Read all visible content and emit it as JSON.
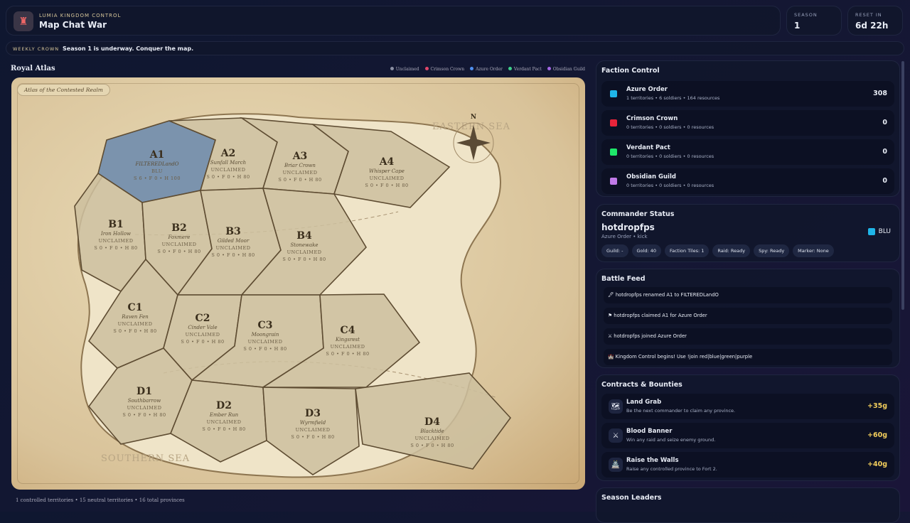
{
  "header": {
    "kicker": "LUMIA KINGDOM CONTROL",
    "title": "Map Chat War",
    "logo_icon": "castle-icon"
  },
  "stats": [
    {
      "label": "SEASON",
      "value": "1"
    },
    {
      "label": "RESET IN",
      "value": "6d 22h"
    }
  ],
  "ticker": {
    "label": "WEEKLY CROWN",
    "message": "Season 1 is underway. Conquer the map."
  },
  "atlas": {
    "title": "Royal Atlas",
    "badge": "Atlas of the Contested Realm",
    "east_sea": "EASTERN SEA",
    "south_sea": "SOUTHERN SEA",
    "compass": "N",
    "legend": [
      {
        "label": "Unclaimed",
        "color": "#8a8fa3"
      },
      {
        "label": "Crimson Crown",
        "color": "#e0466a"
      },
      {
        "label": "Azure Order",
        "color": "#4f8ff0"
      },
      {
        "label": "Verdant Pact",
        "color": "#3fd08a"
      },
      {
        "label": "Obsidian Guild",
        "color": "#a467e6"
      }
    ],
    "territories": [
      {
        "id": "A1",
        "name": "FILTEREDLandO",
        "owner": "BLU",
        "stats": "S 6 • F 0 • H 100",
        "color": "#7b93ad"
      },
      {
        "id": "A2",
        "name": "Sunfall March",
        "owner": "UNCLAIMED",
        "stats": "S 0 • F 0 • H 80"
      },
      {
        "id": "A3",
        "name": "Briar Crown",
        "owner": "UNCLAIMED",
        "stats": "S 0 • F 0 • H 80"
      },
      {
        "id": "A4",
        "name": "Whisper Cape",
        "owner": "UNCLAIMED",
        "stats": "S 0 • F 0 • H 80"
      },
      {
        "id": "B1",
        "name": "Iron Hollow",
        "owner": "UNCLAIMED",
        "stats": "S 0 • F 0 • H 80"
      },
      {
        "id": "B2",
        "name": "Foxmere",
        "owner": "UNCLAIMED",
        "stats": "S 0 • F 0 • H 80"
      },
      {
        "id": "B3",
        "name": "Gilded Moor",
        "owner": "UNCLAIMED",
        "stats": "S 0 • F 0 • H 80"
      },
      {
        "id": "B4",
        "name": "Stonewake",
        "owner": "UNCLAIMED",
        "stats": "S 0 • F 0 • H 80"
      },
      {
        "id": "C1",
        "name": "Raven Fen",
        "owner": "UNCLAIMED",
        "stats": "S 0 • F 0 • H 80"
      },
      {
        "id": "C2",
        "name": "Cinder Vale",
        "owner": "UNCLAIMED",
        "stats": "S 0 • F 0 • H 80"
      },
      {
        "id": "C3",
        "name": "Moongrain",
        "owner": "UNCLAIMED",
        "stats": "S 0 • F 0 • H 80"
      },
      {
        "id": "C4",
        "name": "Kingsrest",
        "owner": "UNCLAIMED",
        "stats": "S 0 • F 0 • H 80"
      },
      {
        "id": "D1",
        "name": "Southbarrow",
        "owner": "UNCLAIMED",
        "stats": "S 0 • F 0 • H 80"
      },
      {
        "id": "D2",
        "name": "Ember Run",
        "owner": "UNCLAIMED",
        "stats": "S 0 • F 0 • H 80"
      },
      {
        "id": "D3",
        "name": "Wyrmfield",
        "owner": "UNCLAIMED",
        "stats": "S 0 • F 0 • H 80"
      },
      {
        "id": "D4",
        "name": "Blacktide",
        "owner": "UNCLAIMED",
        "stats": "S 0 • F 0 • H 80"
      }
    ],
    "footer": "1 controlled territories • 15 neutral territories • 16 total provinces"
  },
  "factions": {
    "title": "Faction Control",
    "items": [
      {
        "name": "Azure Order",
        "summary": "1 territories • 6 soldiers • 164 resources",
        "score": "308",
        "color": "#1fb5e8"
      },
      {
        "name": "Crimson Crown",
        "summary": "0 territories • 0 soldiers • 0 resources",
        "score": "0",
        "color": "#e8243a"
      },
      {
        "name": "Verdant Pact",
        "summary": "0 territories • 0 soldiers • 0 resources",
        "score": "0",
        "color": "#1ee86a"
      },
      {
        "name": "Obsidian Guild",
        "summary": "0 territories • 0 soldiers • 0 resources",
        "score": "0",
        "color": "#c07ae8"
      }
    ]
  },
  "commander": {
    "title": "Commander Status",
    "name": "hotdropfps",
    "sub": "Azure Order • kick",
    "team": "BLU",
    "team_color": "#1fb5e8",
    "chips": [
      "Guild: -",
      "Gold: 40",
      "Faction Tiles: 1",
      "Raid: Ready",
      "Spy: Ready",
      "Marker: None"
    ]
  },
  "feed": {
    "title": "Battle Feed",
    "items": [
      {
        "icon": "🖋",
        "text": "hotdropfps renamed A1 to FILTEREDLandO"
      },
      {
        "icon": "⚑",
        "text": "hotdropfps claimed A1 for Azure Order"
      },
      {
        "icon": "⚔",
        "text": "hotdropfps joined Azure Order"
      },
      {
        "icon": "🏰",
        "text": "Kingdom Control begins! Use !join red|blue|green|purple"
      }
    ]
  },
  "contracts": {
    "title": "Contracts & Bounties",
    "items": [
      {
        "icon": "🗺",
        "name": "Land Grab",
        "desc": "Be the next commander to claim any province.",
        "reward": "+35g"
      },
      {
        "icon": "⚔",
        "name": "Blood Banner",
        "desc": "Win any raid and seize enemy ground.",
        "reward": "+60g"
      },
      {
        "icon": "🏯",
        "name": "Raise the Walls",
        "desc": "Raise any controlled province to Fort 2.",
        "reward": "+40g"
      }
    ]
  },
  "leaders": {
    "title": "Season Leaders"
  }
}
